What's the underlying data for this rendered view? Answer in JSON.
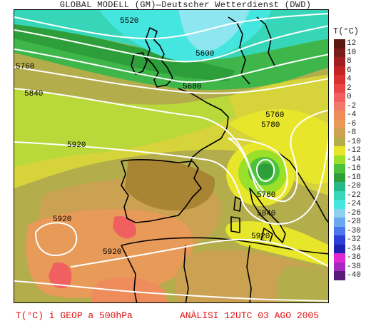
{
  "header": {
    "title": "GLOBAL MODELL (GM)—Deutscher Wetterdienst (DWD)"
  },
  "legend": {
    "title": "T(°C)",
    "items": [
      {
        "label": "12",
        "color": "#5a1a12"
      },
      {
        "label": "10",
        "color": "#7a1e18"
      },
      {
        "label": "8",
        "color": "#a01e1e"
      },
      {
        "label": "6",
        "color": "#c22424"
      },
      {
        "label": "4",
        "color": "#d93030"
      },
      {
        "label": "2",
        "color": "#e84545"
      },
      {
        "label": "0",
        "color": "#f06060"
      },
      {
        "label": "-2",
        "color": "#f07a6a"
      },
      {
        "label": "-4",
        "color": "#ee8c5c"
      },
      {
        "label": "-6",
        "color": "#e89a58"
      },
      {
        "label": "-8",
        "color": "#cba152"
      },
      {
        "label": "-10",
        "color": "#b3ad4c"
      },
      {
        "label": "-12",
        "color": "#e8e62a"
      },
      {
        "label": "-14",
        "color": "#9adf2a"
      },
      {
        "label": "-16",
        "color": "#4cc23a"
      },
      {
        "label": "-18",
        "color": "#2e9e3a"
      },
      {
        "label": "-20",
        "color": "#28b88a"
      },
      {
        "label": "-22",
        "color": "#37d6b8"
      },
      {
        "label": "-24",
        "color": "#46e6e0"
      },
      {
        "label": "-26",
        "color": "#8ed0f0"
      },
      {
        "label": "-28",
        "color": "#6aa8f0"
      },
      {
        "label": "-30",
        "color": "#4a78e8"
      },
      {
        "label": "-32",
        "color": "#2a3ed8"
      },
      {
        "label": "-34",
        "color": "#1e22b0"
      },
      {
        "label": "-36",
        "color": "#e02ad0"
      },
      {
        "label": "-38",
        "color": "#a42ac0"
      },
      {
        "label": "-40",
        "color": "#5a1a78"
      }
    ]
  },
  "contours": {
    "c5520": "5520",
    "c5600": "5600",
    "c5680": "5680",
    "c5760a": "5760",
    "c5760b": "5760",
    "c5760c": "5760",
    "c5780": "5780",
    "c5840a": "5840",
    "c5840b": "5840",
    "c5920a": "5920",
    "c5920b": "5920",
    "c5920c": "5920",
    "c5920d": "5920"
  },
  "footer": {
    "left": "T(°C) i GEOP a 500hPa",
    "right": "ANÀLISI 12UTC 03 AGO 2005"
  }
}
